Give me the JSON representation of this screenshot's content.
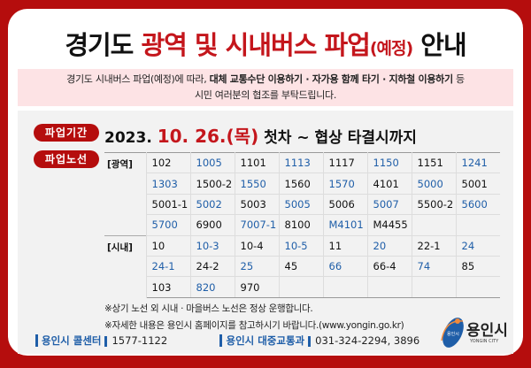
{
  "title": {
    "part1": "경기도 ",
    "part2": "광역 및 시내버스 파업",
    "part3": "(예정)",
    "part4": " 안내"
  },
  "notice": {
    "line1_a": "경기도 시내버스 파업(예정)에 따라, ",
    "line1_b": "대체 교통수단 이용하기 · 자가용 함께 타기 · 지하철 이용하기",
    "line1_c": " 등",
    "line2": "시민 여러분의 협조를 부탁드립니다."
  },
  "period": {
    "label": "파업기간",
    "year": "2023.",
    "date": "10. 26.(목)",
    "rest": " 첫차  ~  협상 타결시까지"
  },
  "routes": {
    "label": "파업노선",
    "wide_label": "[광역]",
    "wide": [
      [
        "102",
        "1005",
        "1101",
        "1113",
        "1117",
        "1150",
        "1151",
        "1241"
      ],
      [
        "1303",
        "1500-2",
        "1550",
        "1560",
        "1570",
        "4101",
        "5000",
        "5001"
      ],
      [
        "5001-1",
        "5002",
        "5003",
        "5005",
        "5006",
        "5007",
        "5500-2",
        "5600"
      ],
      [
        "5700",
        "6900",
        "7007-1",
        "8100",
        "M4101",
        "M4455",
        "",
        ""
      ]
    ],
    "city_label": "[시내]",
    "city": [
      [
        "10",
        "10-3",
        "10-4",
        "10-5",
        "11",
        "20",
        "22-1",
        "24"
      ],
      [
        "24-1",
        "24-2",
        "25",
        "45",
        "66",
        "66-4",
        "74",
        "85"
      ],
      [
        "103",
        "820",
        "970",
        "",
        "",
        "",
        "",
        ""
      ]
    ]
  },
  "notes": [
    "※상기 노선 외 시내 · 마을버스 노선은 정상 운행합니다.",
    "※자세한 내용은 용인시 홈페이지를 참고하시기 바랍니다.(www.yongin.go.kr)"
  ],
  "footer": {
    "call_label": "용인시 콜센터",
    "call_number": "1577-1122",
    "dept_label": "용인시 대중교통과",
    "dept_number": "031-324-2294, 3896"
  },
  "logo": {
    "name": "용인시",
    "sub": "YONGIN CITY",
    "emblem": "용인시"
  },
  "colors": {
    "red": "#b50d0d",
    "blue": "#1f5ea8",
    "pink": "#fde3e5"
  }
}
